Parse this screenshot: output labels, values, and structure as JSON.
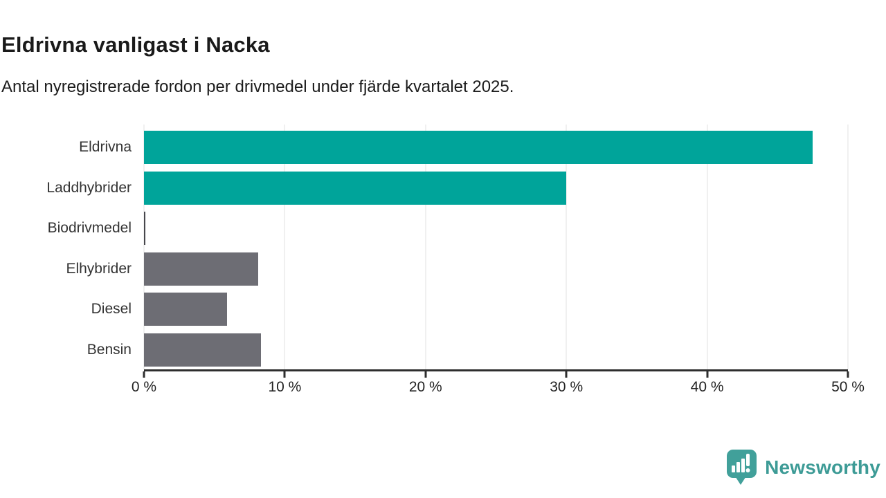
{
  "header": {
    "title": "Eldrivna vanligast i Nacka",
    "subtitle": "Antal nyregistrerade fordon per drivmedel under fjärde kvartalet 2025."
  },
  "chart_data": {
    "type": "bar",
    "orientation": "horizontal",
    "title": "Eldrivna vanligast i Nacka",
    "subtitle": "Antal nyregistrerade fordon per drivmedel under fjärde kvartalet 2025.",
    "categories": [
      "Eldrivna",
      "Laddhybrider",
      "Biodrivmedel",
      "Elhybrider",
      "Diesel",
      "Bensin"
    ],
    "values": [
      47.5,
      30.0,
      0.1,
      8.1,
      5.9,
      8.3
    ],
    "unit": "%",
    "bar_colors": [
      "#00a49a",
      "#00a49a",
      "#47474c",
      "#6d6d74",
      "#6d6d74",
      "#6d6d74"
    ],
    "xlim": [
      0,
      50
    ],
    "x_ticks": [
      0,
      10,
      20,
      30,
      40,
      50
    ],
    "x_tick_labels": [
      "0 %",
      "10 %",
      "20 %",
      "30 %",
      "40 %",
      "50 %"
    ],
    "grid": true,
    "gridline_color": "#e2e2e2",
    "legend": "none"
  },
  "colors": {
    "accent_teal": "#00a49a",
    "neutral_gray": "#6d6d74",
    "axis": "#2e2e2e",
    "brand_teal": "#3d9b96"
  },
  "footer": {
    "brand": "Newsworthy",
    "logo_icon": "bar-chart-speech-bubble-icon"
  }
}
